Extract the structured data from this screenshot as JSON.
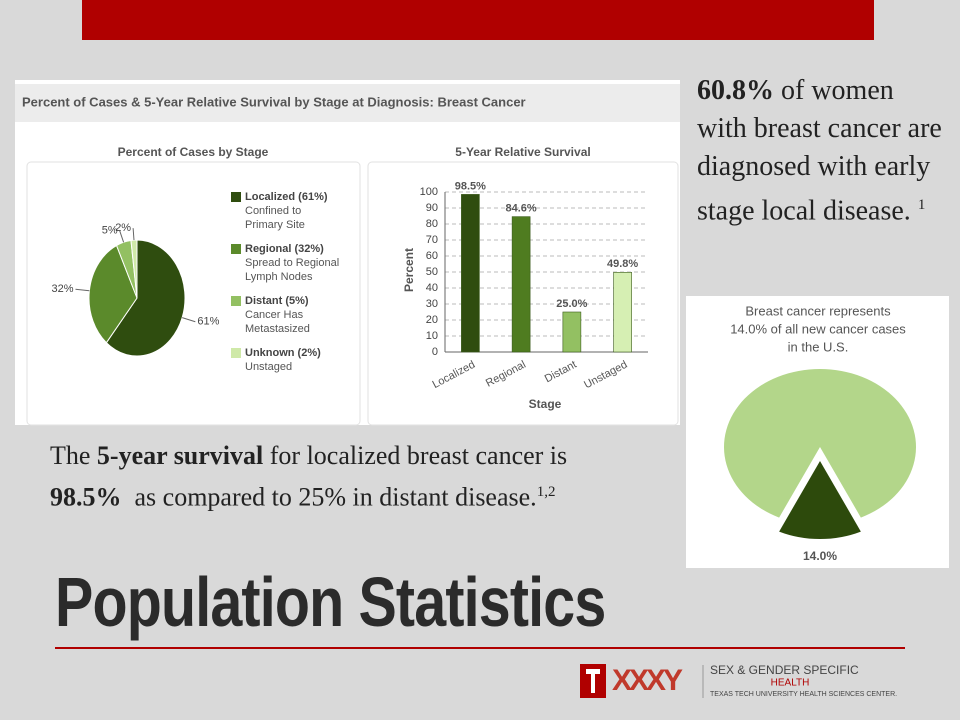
{
  "slide": {
    "title": "Population Statistics",
    "panel_title": "Percent of Cases & 5-Year Relative Survival by Stage at Diagnosis: Breast Cancer",
    "right_text": {
      "bold": "60.8%",
      "text": " of women with breast cancer are diagnosed with early stage local disease.",
      "sup": "1"
    },
    "bottom_text": {
      "part1": "The ",
      "bold1": "5-year survival",
      "part2": " for localized breast cancer is ",
      "bold2": "98.5%",
      "part3": "  as compared to 25% in distant disease.",
      "sup": "1,2"
    },
    "footer": {
      "logo_mark": "XXXY",
      "line1": "SEX & GENDER SPECIFIC",
      "line2": "HEALTH",
      "line3": "TEXAS TECH UNIVERSITY HEALTH SCIENCES CENTER."
    }
  },
  "chart_data": [
    {
      "type": "pie",
      "title": "Percent of Cases by Stage",
      "categories": [
        "Localized (61%)",
        "Regional (32%)",
        "Distant (5%)",
        "Unknown (2%)"
      ],
      "descriptions": [
        [
          "Confined to",
          "Primary Site"
        ],
        [
          "Spread to Regional",
          "Lymph Nodes"
        ],
        [
          "Cancer Has",
          "Metastasized"
        ],
        [
          "Unstaged"
        ]
      ],
      "values": [
        61,
        32,
        5,
        2
      ],
      "value_labels": [
        "61%",
        "32%",
        "5%",
        "2%"
      ],
      "colors": [
        "#2f4d0f",
        "#5b8a2b",
        "#93c062",
        "#cfe9a8"
      ]
    },
    {
      "type": "bar",
      "title": "5-Year Relative Survival",
      "xlabel": "Stage",
      "ylabel": "Percent",
      "categories": [
        "Localized",
        "Regional",
        "Distant",
        "Unstaged"
      ],
      "values": [
        98.5,
        84.6,
        25.0,
        49.8
      ],
      "value_labels": [
        "98.5%",
        "84.6%",
        "25.0%",
        "49.8%"
      ],
      "colors": [
        "#2f4d0f",
        "#4f7c20",
        "#93c062",
        "#d6efb3"
      ],
      "ylim": [
        0,
        100
      ],
      "yticks": [
        0,
        10,
        20,
        30,
        40,
        50,
        60,
        70,
        80,
        90,
        100
      ],
      "grid": true
    },
    {
      "type": "pie",
      "title": [
        "Breast cancer represents",
        "14.0% of all new cancer cases",
        "in the U.S."
      ],
      "values": [
        14.0,
        86.0
      ],
      "value_labels": [
        "14.0%",
        null
      ],
      "colors": [
        "#2d4a0c",
        "#b3d68a"
      ],
      "explode": [
        true,
        false
      ]
    }
  ]
}
